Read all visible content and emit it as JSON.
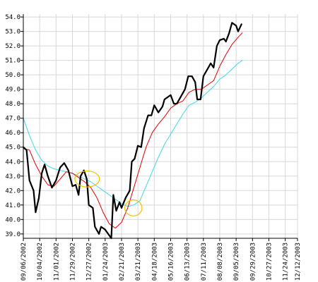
{
  "chart_data": {
    "type": "line",
    "title": "",
    "xlabel": "",
    "ylabel": "",
    "ylim": [
      38.7,
      54.2
    ],
    "grid": true,
    "legend": "none",
    "y_ticks": [
      39.0,
      40.0,
      41.0,
      42.0,
      43.0,
      44.0,
      45.0,
      46.0,
      47.0,
      48.0,
      49.0,
      50.0,
      51.0,
      52.0,
      53.0,
      54.0
    ],
    "y_tick_labels": [
      "39.0",
      "40.0",
      "41.0",
      "42.0",
      "43.0",
      "44.0",
      "45.0",
      "46.0",
      "47.0",
      "48.0",
      "49.0",
      "50.0",
      "51.0",
      "52.0",
      "53.0",
      "54.0"
    ],
    "x_ticks": [
      {
        "t": 0,
        "label": "09/06/2002"
      },
      {
        "t": 4,
        "label": "10/04/2002"
      },
      {
        "t": 8,
        "label": "11/01/2002"
      },
      {
        "t": 12,
        "label": "11/29/2002"
      },
      {
        "t": 16,
        "label": "12/27/2002"
      },
      {
        "t": 20,
        "label": "01/24/2003"
      },
      {
        "t": 24,
        "label": "02/21/2003"
      },
      {
        "t": 28,
        "label": "03/21/2003"
      },
      {
        "t": 32,
        "label": "04/18/2003"
      },
      {
        "t": 36,
        "label": "05/16/2003"
      },
      {
        "t": 40,
        "label": "06/13/2003"
      },
      {
        "t": 44,
        "label": "07/11/2003"
      },
      {
        "t": 48,
        "label": "08/08/2003"
      },
      {
        "t": 52,
        "label": "09/05/2003"
      },
      {
        "t": 56,
        "label": "09/29/2003"
      },
      {
        "t": 60,
        "label": "10/27/2003"
      },
      {
        "t": 64,
        "label": "11/24/2003"
      },
      {
        "t": 67,
        "label": "12/12/2003"
      }
    ],
    "x_range": [
      0,
      67
    ],
    "series": [
      {
        "key": "price",
        "color": "#000000",
        "width": 2.2,
        "points": [
          [
            0,
            45.0
          ],
          [
            0.8,
            44.8
          ],
          [
            1.5,
            42.7
          ],
          [
            2.5,
            42.0
          ],
          [
            3.0,
            40.5
          ],
          [
            3.8,
            41.5
          ],
          [
            4.5,
            43.2
          ],
          [
            5.2,
            43.8
          ],
          [
            6.0,
            43.0
          ],
          [
            7.0,
            42.2
          ],
          [
            8.0,
            42.7
          ],
          [
            9.0,
            43.6
          ],
          [
            10.0,
            43.9
          ],
          [
            11.0,
            43.4
          ],
          [
            12.0,
            42.3
          ],
          [
            12.8,
            42.4
          ],
          [
            13.5,
            41.7
          ],
          [
            14.0,
            43.0
          ],
          [
            14.8,
            43.4
          ],
          [
            15.5,
            42.8
          ],
          [
            16.0,
            41.0
          ],
          [
            17.0,
            40.8
          ],
          [
            17.5,
            39.5
          ],
          [
            18.5,
            39.0
          ],
          [
            19.0,
            39.5
          ],
          [
            20.0,
            39.3
          ],
          [
            21.0,
            38.9
          ],
          [
            21.5,
            38.7
          ],
          [
            22.0,
            41.7
          ],
          [
            22.7,
            40.6
          ],
          [
            23.5,
            41.2
          ],
          [
            24.0,
            40.8
          ],
          [
            25.0,
            41.5
          ],
          [
            26.0,
            42.0
          ],
          [
            26.5,
            44.0
          ],
          [
            27.2,
            44.2
          ],
          [
            28.0,
            45.1
          ],
          [
            28.8,
            45.0
          ],
          [
            29.5,
            46.3
          ],
          [
            30.5,
            47.2
          ],
          [
            31.3,
            47.2
          ],
          [
            32.0,
            47.9
          ],
          [
            33.0,
            47.4
          ],
          [
            34.0,
            47.8
          ],
          [
            34.5,
            48.3
          ],
          [
            35.5,
            48.5
          ],
          [
            36.0,
            48.6
          ],
          [
            36.8,
            48.0
          ],
          [
            37.5,
            48.0
          ],
          [
            38.5,
            48.5
          ],
          [
            39.5,
            49.0
          ],
          [
            40.3,
            49.9
          ],
          [
            41.2,
            49.9
          ],
          [
            42.0,
            49.5
          ],
          [
            42.5,
            48.3
          ],
          [
            43.3,
            48.3
          ],
          [
            44.0,
            49.9
          ],
          [
            45.0,
            50.4
          ],
          [
            45.8,
            50.8
          ],
          [
            46.5,
            50.5
          ],
          [
            47.3,
            52.0
          ],
          [
            48.0,
            52.4
          ],
          [
            49.0,
            52.5
          ],
          [
            49.5,
            52.3
          ],
          [
            50.3,
            52.9
          ],
          [
            51.0,
            53.6
          ],
          [
            52.0,
            53.4
          ],
          [
            52.5,
            53.0
          ],
          [
            53.3,
            53.5
          ]
        ]
      },
      {
        "key": "ma_short",
        "color": "#e00000",
        "width": 1,
        "points": [
          [
            0,
            44.9
          ],
          [
            1.5,
            44.8
          ],
          [
            3.0,
            43.8
          ],
          [
            4.5,
            43.0
          ],
          [
            6.0,
            42.4
          ],
          [
            7.5,
            42.3
          ],
          [
            9.0,
            42.8
          ],
          [
            10.5,
            43.3
          ],
          [
            12.0,
            43.2
          ],
          [
            13.5,
            42.9
          ],
          [
            15.0,
            42.6
          ],
          [
            16.5,
            42.2
          ],
          [
            18.0,
            41.5
          ],
          [
            19.5,
            40.5
          ],
          [
            21.0,
            39.7
          ],
          [
            22.5,
            39.4
          ],
          [
            24.0,
            39.8
          ],
          [
            25.5,
            40.8
          ],
          [
            27.0,
            42.2
          ],
          [
            28.5,
            43.6
          ],
          [
            30.0,
            45.0
          ],
          [
            31.5,
            46.0
          ],
          [
            33.0,
            46.6
          ],
          [
            34.5,
            47.1
          ],
          [
            36.0,
            47.7
          ],
          [
            37.5,
            48.0
          ],
          [
            39.0,
            48.2
          ],
          [
            40.5,
            48.8
          ],
          [
            42.0,
            49.0
          ],
          [
            43.5,
            49.0
          ],
          [
            45.0,
            49.3
          ],
          [
            46.5,
            49.6
          ],
          [
            48.0,
            50.6
          ],
          [
            49.5,
            51.4
          ],
          [
            51.0,
            52.1
          ],
          [
            52.5,
            52.6
          ],
          [
            53.5,
            52.9
          ]
        ]
      },
      {
        "key": "ma_long",
        "color": "#40d8e8",
        "width": 1,
        "points": [
          [
            0,
            47.0
          ],
          [
            1.5,
            45.8
          ],
          [
            3.0,
            44.8
          ],
          [
            4.5,
            44.1
          ],
          [
            6.0,
            43.7
          ],
          [
            7.5,
            43.5
          ],
          [
            9.0,
            43.4
          ],
          [
            10.5,
            43.3
          ],
          [
            12.0,
            43.2
          ],
          [
            13.5,
            43.0
          ],
          [
            15.0,
            42.8
          ],
          [
            16.5,
            42.6
          ],
          [
            18.0,
            42.3
          ],
          [
            19.5,
            42.0
          ],
          [
            21.0,
            41.7
          ],
          [
            22.5,
            41.4
          ],
          [
            24.0,
            41.1
          ],
          [
            25.5,
            40.9
          ],
          [
            27.0,
            41.0
          ],
          [
            28.5,
            41.3
          ],
          [
            30.0,
            42.3
          ],
          [
            31.5,
            43.3
          ],
          [
            33.0,
            44.3
          ],
          [
            34.5,
            45.2
          ],
          [
            36.0,
            45.9
          ],
          [
            37.5,
            46.6
          ],
          [
            39.0,
            47.3
          ],
          [
            40.5,
            47.9
          ],
          [
            42.0,
            48.1
          ],
          [
            43.5,
            48.4
          ],
          [
            45.0,
            48.8
          ],
          [
            46.5,
            49.2
          ],
          [
            48.0,
            49.7
          ],
          [
            49.5,
            50.0
          ],
          [
            51.0,
            50.4
          ],
          [
            52.5,
            50.8
          ],
          [
            53.5,
            51.0
          ]
        ]
      }
    ],
    "annotations": [
      {
        "type": "ellipse",
        "cx": 15.6,
        "cy": 42.8,
        "rx": 3.0,
        "ry": 0.55,
        "color": "#f0c000"
      },
      {
        "type": "ellipse",
        "cx": 26.9,
        "cy": 40.8,
        "rx": 2.1,
        "ry": 0.55,
        "color": "#f0c000"
      }
    ]
  }
}
